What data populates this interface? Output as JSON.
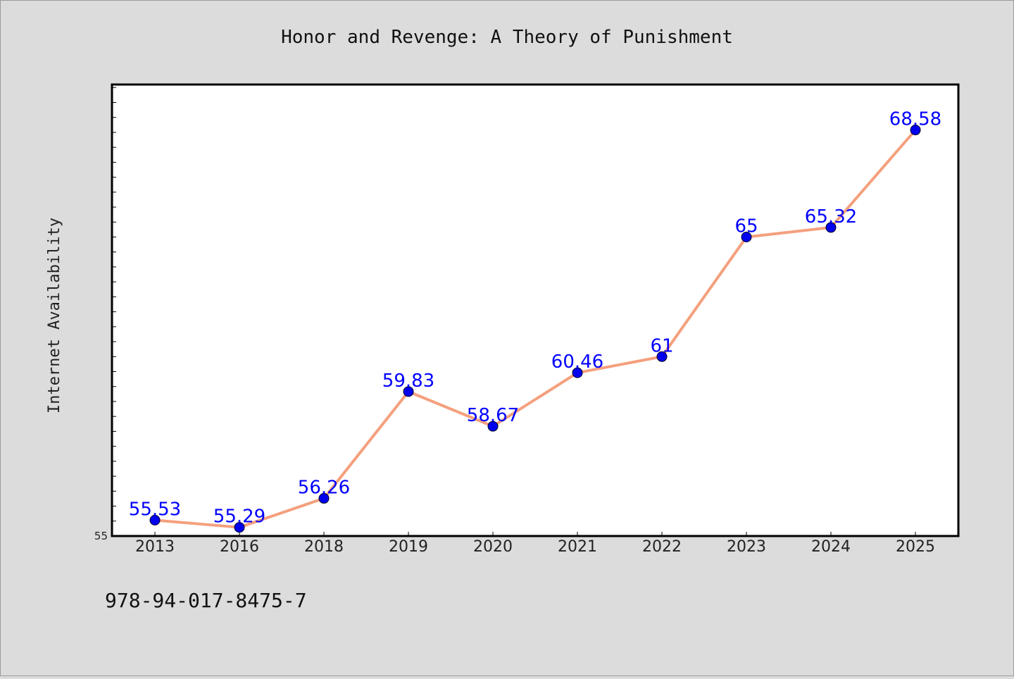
{
  "chart_data": {
    "type": "line",
    "title": "Honor and Revenge: A Theory of Punishment",
    "xlabel": "",
    "ylabel": "Internet Availability",
    "categories": [
      "2013",
      "2016",
      "2018",
      "2019",
      "2020",
      "2021",
      "2022",
      "2023",
      "2024",
      "2025"
    ],
    "series": [
      {
        "values": [
          55.53,
          55.29,
          56.26,
          59.83,
          58.67,
          60.46,
          61,
          65,
          65.32,
          68.58
        ],
        "labels": [
          "55.53",
          "55.29",
          "56.26",
          "59.83",
          "58.67",
          "60.46",
          "61",
          "65",
          "65.32",
          "68.58"
        ],
        "line_color": "#f4a07e",
        "marker_color": "#0000ee"
      }
    ],
    "ylim": [
      55,
      70.1
    ],
    "y_tick_labels": [
      "55"
    ],
    "label_color": "#0000ff",
    "grid": false,
    "legend": "none"
  },
  "footer": {
    "isbn": "978-94-017-8475-7"
  },
  "colors": {
    "background": "#dcdcdc",
    "plot_background": "#ffffff"
  }
}
